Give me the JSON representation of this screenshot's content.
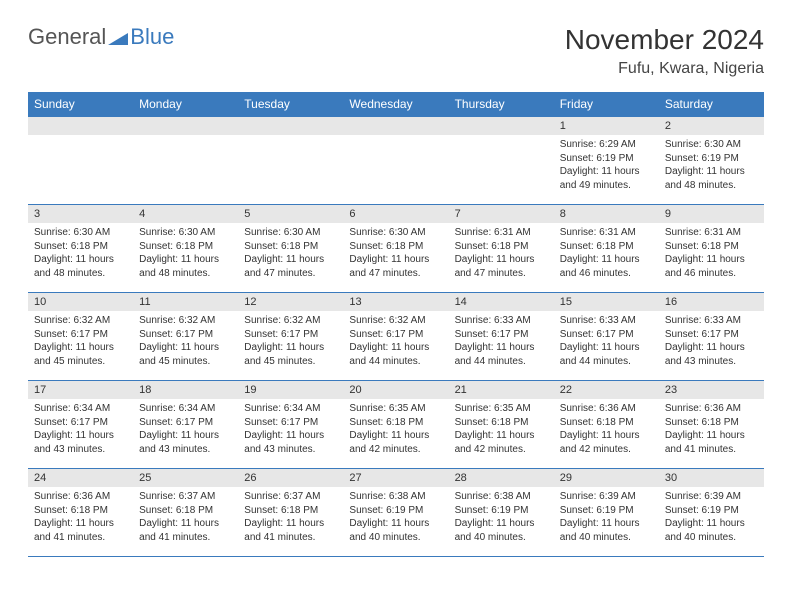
{
  "logo": {
    "part1": "General",
    "part2": "Blue"
  },
  "title": "November 2024",
  "location": "Fufu, Kwara, Nigeria",
  "colors": {
    "header_bg": "#3a7abd",
    "header_text": "#ffffff",
    "daynum_bg": "#e7e7e7",
    "border": "#3a7abd",
    "text": "#333333",
    "logo_gray": "#555555",
    "logo_blue": "#3a7abd"
  },
  "day_headers": [
    "Sunday",
    "Monday",
    "Tuesday",
    "Wednesday",
    "Thursday",
    "Friday",
    "Saturday"
  ],
  "weeks": [
    [
      {
        "n": "",
        "sr": "",
        "ss": "",
        "dl": ""
      },
      {
        "n": "",
        "sr": "",
        "ss": "",
        "dl": ""
      },
      {
        "n": "",
        "sr": "",
        "ss": "",
        "dl": ""
      },
      {
        "n": "",
        "sr": "",
        "ss": "",
        "dl": ""
      },
      {
        "n": "",
        "sr": "",
        "ss": "",
        "dl": ""
      },
      {
        "n": "1",
        "sr": "Sunrise: 6:29 AM",
        "ss": "Sunset: 6:19 PM",
        "dl": "Daylight: 11 hours and 49 minutes."
      },
      {
        "n": "2",
        "sr": "Sunrise: 6:30 AM",
        "ss": "Sunset: 6:19 PM",
        "dl": "Daylight: 11 hours and 48 minutes."
      }
    ],
    [
      {
        "n": "3",
        "sr": "Sunrise: 6:30 AM",
        "ss": "Sunset: 6:18 PM",
        "dl": "Daylight: 11 hours and 48 minutes."
      },
      {
        "n": "4",
        "sr": "Sunrise: 6:30 AM",
        "ss": "Sunset: 6:18 PM",
        "dl": "Daylight: 11 hours and 48 minutes."
      },
      {
        "n": "5",
        "sr": "Sunrise: 6:30 AM",
        "ss": "Sunset: 6:18 PM",
        "dl": "Daylight: 11 hours and 47 minutes."
      },
      {
        "n": "6",
        "sr": "Sunrise: 6:30 AM",
        "ss": "Sunset: 6:18 PM",
        "dl": "Daylight: 11 hours and 47 minutes."
      },
      {
        "n": "7",
        "sr": "Sunrise: 6:31 AM",
        "ss": "Sunset: 6:18 PM",
        "dl": "Daylight: 11 hours and 47 minutes."
      },
      {
        "n": "8",
        "sr": "Sunrise: 6:31 AM",
        "ss": "Sunset: 6:18 PM",
        "dl": "Daylight: 11 hours and 46 minutes."
      },
      {
        "n": "9",
        "sr": "Sunrise: 6:31 AM",
        "ss": "Sunset: 6:18 PM",
        "dl": "Daylight: 11 hours and 46 minutes."
      }
    ],
    [
      {
        "n": "10",
        "sr": "Sunrise: 6:32 AM",
        "ss": "Sunset: 6:17 PM",
        "dl": "Daylight: 11 hours and 45 minutes."
      },
      {
        "n": "11",
        "sr": "Sunrise: 6:32 AM",
        "ss": "Sunset: 6:17 PM",
        "dl": "Daylight: 11 hours and 45 minutes."
      },
      {
        "n": "12",
        "sr": "Sunrise: 6:32 AM",
        "ss": "Sunset: 6:17 PM",
        "dl": "Daylight: 11 hours and 45 minutes."
      },
      {
        "n": "13",
        "sr": "Sunrise: 6:32 AM",
        "ss": "Sunset: 6:17 PM",
        "dl": "Daylight: 11 hours and 44 minutes."
      },
      {
        "n": "14",
        "sr": "Sunrise: 6:33 AM",
        "ss": "Sunset: 6:17 PM",
        "dl": "Daylight: 11 hours and 44 minutes."
      },
      {
        "n": "15",
        "sr": "Sunrise: 6:33 AM",
        "ss": "Sunset: 6:17 PM",
        "dl": "Daylight: 11 hours and 44 minutes."
      },
      {
        "n": "16",
        "sr": "Sunrise: 6:33 AM",
        "ss": "Sunset: 6:17 PM",
        "dl": "Daylight: 11 hours and 43 minutes."
      }
    ],
    [
      {
        "n": "17",
        "sr": "Sunrise: 6:34 AM",
        "ss": "Sunset: 6:17 PM",
        "dl": "Daylight: 11 hours and 43 minutes."
      },
      {
        "n": "18",
        "sr": "Sunrise: 6:34 AM",
        "ss": "Sunset: 6:17 PM",
        "dl": "Daylight: 11 hours and 43 minutes."
      },
      {
        "n": "19",
        "sr": "Sunrise: 6:34 AM",
        "ss": "Sunset: 6:17 PM",
        "dl": "Daylight: 11 hours and 43 minutes."
      },
      {
        "n": "20",
        "sr": "Sunrise: 6:35 AM",
        "ss": "Sunset: 6:18 PM",
        "dl": "Daylight: 11 hours and 42 minutes."
      },
      {
        "n": "21",
        "sr": "Sunrise: 6:35 AM",
        "ss": "Sunset: 6:18 PM",
        "dl": "Daylight: 11 hours and 42 minutes."
      },
      {
        "n": "22",
        "sr": "Sunrise: 6:36 AM",
        "ss": "Sunset: 6:18 PM",
        "dl": "Daylight: 11 hours and 42 minutes."
      },
      {
        "n": "23",
        "sr": "Sunrise: 6:36 AM",
        "ss": "Sunset: 6:18 PM",
        "dl": "Daylight: 11 hours and 41 minutes."
      }
    ],
    [
      {
        "n": "24",
        "sr": "Sunrise: 6:36 AM",
        "ss": "Sunset: 6:18 PM",
        "dl": "Daylight: 11 hours and 41 minutes."
      },
      {
        "n": "25",
        "sr": "Sunrise: 6:37 AM",
        "ss": "Sunset: 6:18 PM",
        "dl": "Daylight: 11 hours and 41 minutes."
      },
      {
        "n": "26",
        "sr": "Sunrise: 6:37 AM",
        "ss": "Sunset: 6:18 PM",
        "dl": "Daylight: 11 hours and 41 minutes."
      },
      {
        "n": "27",
        "sr": "Sunrise: 6:38 AM",
        "ss": "Sunset: 6:19 PM",
        "dl": "Daylight: 11 hours and 40 minutes."
      },
      {
        "n": "28",
        "sr": "Sunrise: 6:38 AM",
        "ss": "Sunset: 6:19 PM",
        "dl": "Daylight: 11 hours and 40 minutes."
      },
      {
        "n": "29",
        "sr": "Sunrise: 6:39 AM",
        "ss": "Sunset: 6:19 PM",
        "dl": "Daylight: 11 hours and 40 minutes."
      },
      {
        "n": "30",
        "sr": "Sunrise: 6:39 AM",
        "ss": "Sunset: 6:19 PM",
        "dl": "Daylight: 11 hours and 40 minutes."
      }
    ]
  ]
}
